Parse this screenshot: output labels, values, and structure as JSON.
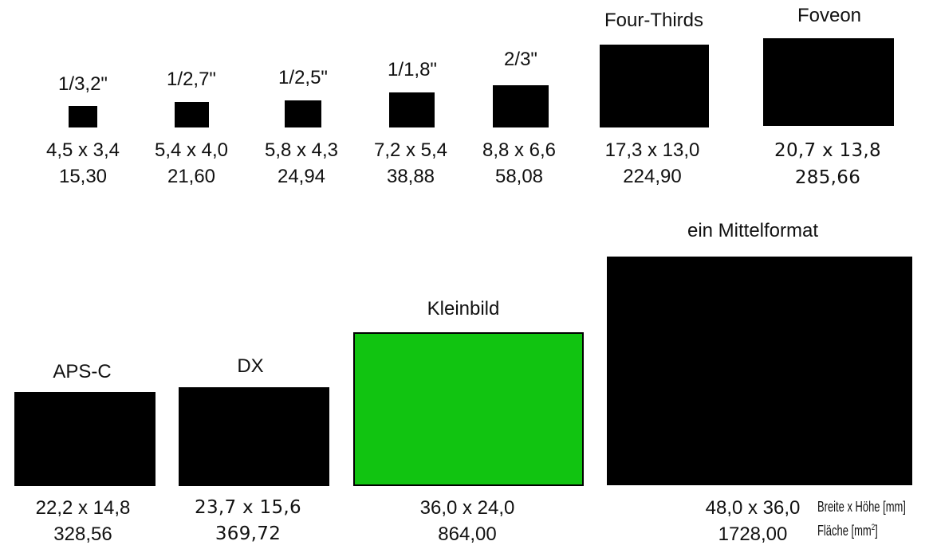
{
  "sensors": [
    {
      "name": "1/3,2\"",
      "dims": "4,5 x 3,4",
      "area": "15,30",
      "width": 4.5,
      "height": 3.4,
      "color": "#000000"
    },
    {
      "name": "1/2,7\"",
      "dims": "5,4 x 4,0",
      "area": "21,60",
      "width": 5.4,
      "height": 4.0,
      "color": "#000000"
    },
    {
      "name": "1/2,5\"",
      "dims": "5,8 x 4,3",
      "area": "24,94",
      "width": 5.8,
      "height": 4.3,
      "color": "#000000"
    },
    {
      "name": "1/1,8\"",
      "dims": "7,2 x 5,4",
      "area": "38,88",
      "width": 7.2,
      "height": 5.4,
      "color": "#000000"
    },
    {
      "name": "2/3\"",
      "dims": "8,8 x 6,6",
      "area": "58,08",
      "width": 8.8,
      "height": 6.6,
      "color": "#000000"
    },
    {
      "name": "Four-Thirds",
      "dims": "17,3 x 13,0",
      "area": "224,90",
      "width": 17.3,
      "height": 13.0,
      "color": "#000000"
    },
    {
      "name": "Foveon",
      "dims": "20,7 x 13,8",
      "area": "285,66",
      "width": 20.7,
      "height": 13.8,
      "color": "#000000"
    },
    {
      "name": "APS-C",
      "dims": "22,2 x 14,8",
      "area": "328,56",
      "width": 22.2,
      "height": 14.8,
      "color": "#000000"
    },
    {
      "name": "DX",
      "dims": "23,7 x 15,6",
      "area": "369,72",
      "width": 23.7,
      "height": 15.6,
      "color": "#000000"
    },
    {
      "name": "Kleinbild",
      "dims": "36,0 x 24,0",
      "area": "864,00",
      "width": 36.0,
      "height": 24.0,
      "color": "#11c411"
    },
    {
      "name": "ein Mittelformat",
      "dims": "48,0 x 36,0",
      "area": "1728,00",
      "width": 48.0,
      "height": 36.0,
      "color": "#000000"
    }
  ],
  "legend": {
    "dims_label": "Breite x Höhe [mm]",
    "area_label_prefix": "Fläche [mm",
    "area_label_sup": "2",
    "area_label_suffix": "]"
  }
}
